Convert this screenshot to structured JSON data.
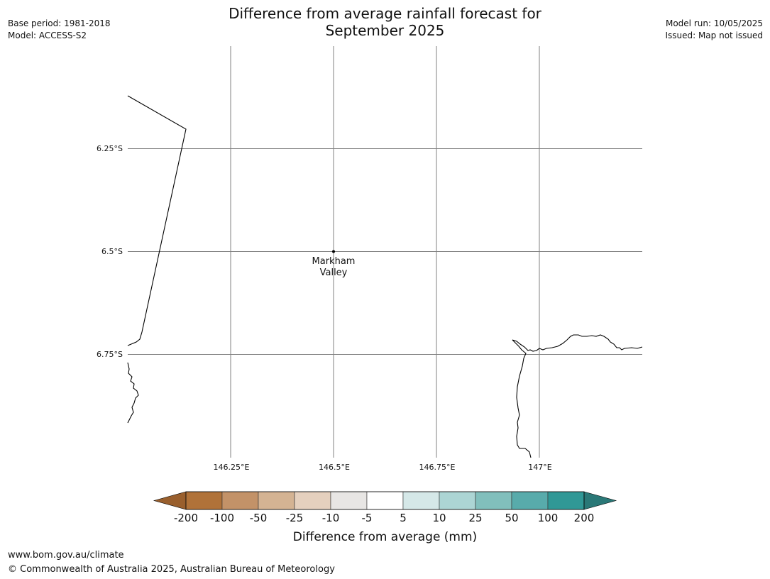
{
  "title": {
    "line1": "Difference from average rainfall forecast for",
    "line2": "September 2025"
  },
  "meta_left": {
    "base_period": "Base period: 1981-2018",
    "model": "Model: ACCESS-S2"
  },
  "meta_right": {
    "model_run": "Model run: 10/05/2025",
    "issued": "Issued: Map not issued"
  },
  "map": {
    "lat_ticks": [
      "6.25°S",
      "6.5°S",
      "6.75°S"
    ],
    "lon_ticks": [
      "146.25°E",
      "146.5°E",
      "146.75°E",
      "147°E"
    ],
    "grid_color": "#808080",
    "coast_color": "#000000",
    "location": {
      "name_line1": "Markham",
      "name_line2": "Valley",
      "lat": -6.5,
      "lon": 146.5
    }
  },
  "colorbar": {
    "label": "Difference from average (mm)",
    "tick_labels": [
      "-200",
      "-100",
      "-50",
      "-25",
      "-10",
      "-5",
      "5",
      "10",
      "25",
      "50",
      "100",
      "200"
    ],
    "below_color": "#995f2d",
    "above_color": "#2a7877",
    "segment_colors": [
      "#b07239",
      "#c39268",
      "#d4b393",
      "#e5d0be",
      "#e8e6e4",
      "#ffffff",
      "#d5e8e8",
      "#acd5d4",
      "#81bfbc",
      "#58abab",
      "#309896"
    ]
  },
  "footer": {
    "url": "www.bom.gov.au/climate",
    "copyright": "© Commonwealth of Australia 2025, Australian Bureau of Meteorology"
  }
}
